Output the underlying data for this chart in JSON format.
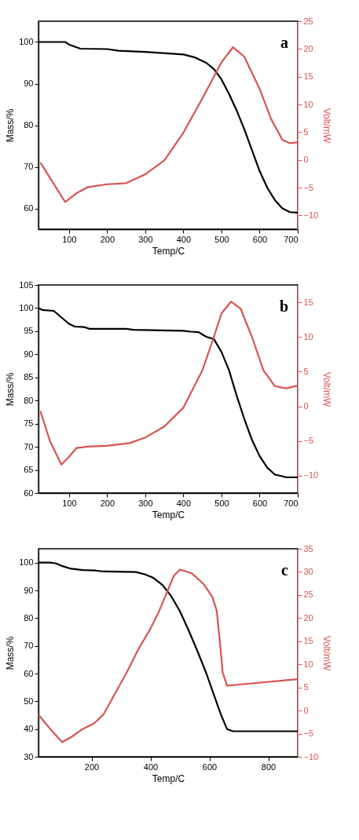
{
  "chart_data": [
    {
      "type": "line",
      "xlabel": "Temp/C",
      "ylabel": "Mass/%",
      "y2label": "Volt/mW",
      "annotations": [
        "a"
      ],
      "xlim": [
        20,
        700
      ],
      "xticks": [
        100,
        200,
        300,
        400,
        500,
        600,
        700
      ],
      "ylim": [
        55,
        105
      ],
      "yticks": [
        60,
        70,
        80,
        90,
        100
      ],
      "y2lim": [
        -12.5,
        25
      ],
      "y2ticks": [
        -10,
        -5,
        0,
        5,
        10,
        15,
        20,
        25
      ],
      "grid": false,
      "marker": "none",
      "line_style": "solid",
      "series": [
        {
          "color": "#000000",
          "x": [
            20,
            90,
            100,
            130,
            200,
            230,
            300,
            400,
            430,
            460,
            480,
            500,
            520,
            540,
            560,
            580,
            600,
            620,
            640,
            660,
            680,
            700
          ],
          "values": [
            100,
            100,
            99.4,
            98.4,
            98.3,
            97.9,
            97.6,
            97,
            96.3,
            95,
            93.5,
            91,
            87.5,
            83.5,
            79,
            74,
            69,
            65,
            62,
            60,
            59.1,
            59
          ]
        },
        {
          "color": "#d9534f",
          "axis": "y2",
          "x": [
            25,
            90,
            120,
            150,
            200,
            250,
            300,
            350,
            400,
            450,
            500,
            530,
            560,
            600,
            630,
            660,
            680,
            700
          ],
          "values": [
            -0.5,
            -7.6,
            -6.0,
            -4.9,
            -4.4,
            -4.2,
            -2.6,
            -0.1,
            4.9,
            11.1,
            17.6,
            20.3,
            18.6,
            12.8,
            7.4,
            3.6,
            3.0,
            3.2
          ]
        }
      ]
    },
    {
      "type": "line",
      "xlabel": "Temp/C",
      "ylabel": "Mass/%",
      "y2label": "Volt/mW",
      "annotations": [
        "b"
      ],
      "xlim": [
        20,
        700
      ],
      "xticks": [
        100,
        200,
        300,
        400,
        500,
        600,
        700
      ],
      "ylim": [
        60,
        105
      ],
      "yticks": [
        60,
        65,
        70,
        75,
        80,
        85,
        90,
        95,
        100,
        105
      ],
      "y2lim": [
        -12.5,
        17.5
      ],
      "y2ticks": [
        -10,
        -5,
        0,
        5,
        10,
        15
      ],
      "grid": false,
      "marker": "none",
      "line_style": "solid",
      "series": [
        {
          "color": "#000000",
          "x": [
            20,
            30,
            60,
            80,
            100,
            115,
            140,
            155,
            250,
            270,
            400,
            420,
            440,
            460,
            480,
            500,
            520,
            540,
            560,
            580,
            600,
            620,
            640,
            660,
            670,
            700
          ],
          "values": [
            100,
            99.6,
            99.4,
            98,
            96.6,
            96,
            95.9,
            95.5,
            95.5,
            95.3,
            95.1,
            94.9,
            94.8,
            93.8,
            93.3,
            90.5,
            86.5,
            81,
            76,
            71.5,
            68,
            65.5,
            64,
            63.6,
            63.4,
            63.4
          ]
        },
        {
          "color": "#d9534f",
          "axis": "y2",
          "x": [
            25,
            50,
            80,
            100,
            120,
            150,
            200,
            230,
            260,
            300,
            350,
            400,
            450,
            480,
            500,
            525,
            550,
            580,
            610,
            640,
            670,
            700
          ],
          "values": [
            -0.7,
            -5,
            -8.4,
            -7.3,
            -6.0,
            -5.8,
            -5.7,
            -5.5,
            -5.3,
            -4.5,
            -2.9,
            -0.2,
            5.2,
            10,
            13.4,
            15.1,
            14.1,
            10,
            5.2,
            2.9,
            2.6,
            3.0
          ]
        }
      ]
    },
    {
      "type": "line",
      "xlabel": "Temp/C",
      "ylabel": "Mass/%",
      "y2label": "Volt/mW",
      "annotations": [
        "c"
      ],
      "xlim": [
        20,
        900
      ],
      "xticks": [
        200,
        400,
        600,
        800
      ],
      "ylim": [
        30,
        105
      ],
      "yticks": [
        30,
        40,
        50,
        60,
        70,
        80,
        90,
        100
      ],
      "y2lim": [
        -10,
        35
      ],
      "y2ticks": [
        -10,
        -5,
        0,
        5,
        10,
        15,
        20,
        25,
        30,
        35
      ],
      "grid": false,
      "marker": "none",
      "line_style": "solid",
      "series": [
        {
          "color": "#000000",
          "x": [
            20,
            60,
            80,
            100,
            130,
            170,
            210,
            240,
            350,
            380,
            410,
            440,
            470,
            500,
            530,
            560,
            590,
            620,
            640,
            660,
            680,
            900
          ],
          "values": [
            100,
            100,
            99.7,
            98.8,
            97.8,
            97.3,
            97.2,
            96.8,
            96.6,
            95.8,
            94.5,
            92,
            88,
            82.5,
            75.5,
            68,
            60,
            51,
            45,
            40,
            39.2,
            39.2
          ]
        },
        {
          "color": "#d9534f",
          "axis": "y2",
          "x": [
            20,
            60,
            100,
            130,
            170,
            210,
            240,
            280,
            320,
            360,
            400,
            430,
            460,
            480,
            500,
            540,
            580,
            610,
            625,
            635,
            645,
            660,
            680,
            900
          ],
          "values": [
            -0.9,
            -4,
            -6.8,
            -5.8,
            -4,
            -2.7,
            -0.9,
            3.7,
            8.3,
            13.4,
            17.7,
            21.6,
            26.2,
            29.2,
            30.5,
            29.7,
            27.4,
            24.6,
            21.6,
            15.4,
            8.3,
            5.4,
            5.5,
            6.8
          ]
        }
      ]
    }
  ]
}
